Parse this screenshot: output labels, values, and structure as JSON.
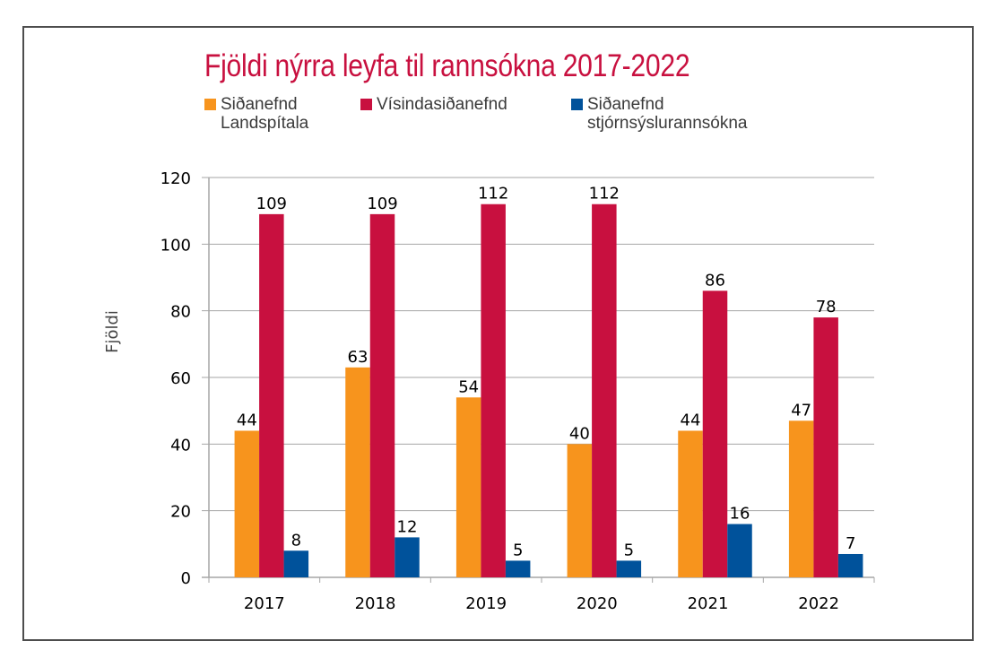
{
  "chart_data": {
    "type": "bar",
    "title": "Fjöldi nýrra leyfa til rannsókna 2017-2022",
    "xlabel": "",
    "ylabel": "Fjöldi",
    "categories": [
      "2017",
      "2018",
      "2019",
      "2020",
      "2021",
      "2022"
    ],
    "series": [
      {
        "name": "Siðanefnd\nLandspítala",
        "color": "#f7941d",
        "values": [
          44,
          63,
          54,
          40,
          44,
          47
        ]
      },
      {
        "name": "Vísindasiðanefnd",
        "color": "#c8103f",
        "values": [
          109,
          109,
          112,
          112,
          86,
          78
        ]
      },
      {
        "name": "Siðanefnd\nstjórnsýslurannsókna",
        "color": "#00529b",
        "values": [
          8,
          12,
          5,
          5,
          16,
          7
        ]
      }
    ],
    "ylim": [
      0,
      120
    ],
    "yticks": [
      0,
      20,
      40,
      60,
      80,
      100,
      120
    ],
    "grid": true,
    "legend_position": "top-left",
    "data_labels": true
  }
}
